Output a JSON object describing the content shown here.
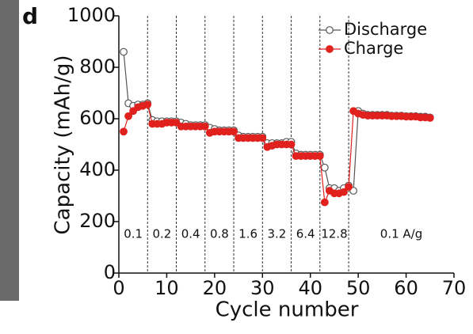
{
  "chart_data": {
    "type": "line",
    "panel_label": "d",
    "x_label": "Cycle number",
    "y_label": "Capacity (mAh/g)",
    "x": [
      1,
      2,
      3,
      4,
      5,
      6,
      7,
      8,
      9,
      10,
      11,
      12,
      13,
      14,
      15,
      16,
      17,
      18,
      19,
      20,
      21,
      22,
      23,
      24,
      25,
      26,
      27,
      28,
      29,
      30,
      31,
      32,
      33,
      34,
      35,
      36,
      37,
      38,
      39,
      40,
      41,
      42,
      43,
      44,
      45,
      46,
      47,
      48,
      49,
      50,
      51,
      52,
      53,
      54,
      55,
      56,
      57,
      58,
      59,
      60,
      61,
      62,
      63,
      64,
      65
    ],
    "series": [
      {
        "name": "Discharge",
        "color": "#555555",
        "marker": "open",
        "values": [
          860,
          660,
          650,
          655,
          655,
          660,
          595,
          590,
          590,
          590,
          590,
          590,
          585,
          580,
          575,
          575,
          575,
          575,
          565,
          560,
          555,
          555,
          555,
          555,
          535,
          530,
          530,
          530,
          530,
          530,
          505,
          505,
          505,
          505,
          510,
          510,
          465,
          460,
          460,
          460,
          460,
          460,
          410,
          330,
          330,
          320,
          330,
          340,
          320,
          630,
          620,
          615,
          615,
          615,
          615,
          615,
          612,
          612,
          612,
          610,
          610,
          610,
          608,
          608,
          605
        ]
      },
      {
        "name": "Charge",
        "color": "#e0211d",
        "marker": "filled",
        "values": [
          550,
          610,
          630,
          645,
          650,
          655,
          580,
          580,
          580,
          585,
          585,
          585,
          570,
          570,
          570,
          570,
          570,
          570,
          545,
          550,
          550,
          550,
          550,
          550,
          525,
          525,
          525,
          525,
          525,
          525,
          490,
          495,
          500,
          500,
          500,
          500,
          455,
          455,
          455,
          455,
          455,
          455,
          275,
          320,
          310,
          310,
          315,
          335,
          630,
          620,
          615,
          612,
          612,
          612,
          612,
          612,
          610,
          610,
          610,
          608,
          608,
          608,
          605,
          605,
          603
        ]
      }
    ],
    "dividers": [
      6,
      12,
      18,
      24,
      30,
      36,
      42,
      48
    ],
    "rate_labels": [
      "0.1",
      "0.2",
      "0.4",
      "0.8",
      "1.6",
      "3.2",
      "6.4",
      "12.8",
      "0.1 A/g"
    ],
    "xlim": [
      0,
      70
    ],
    "xticks": [
      0,
      10,
      20,
      30,
      40,
      50,
      60,
      70
    ],
    "ylim": [
      0,
      1000
    ],
    "yticks": [
      0,
      200,
      400,
      600,
      800,
      1000
    ],
    "legend": "upper right"
  }
}
